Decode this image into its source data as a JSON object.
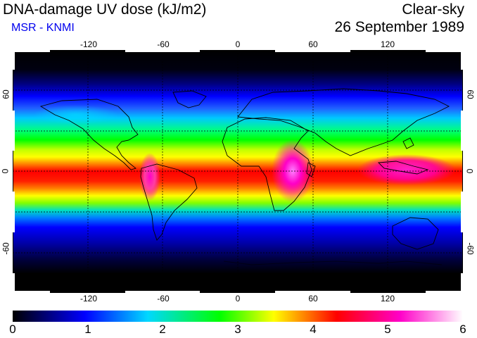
{
  "header": {
    "title": "DNA-damage UV dose (kJ/m2)",
    "subtitle": "MSR - KNMI",
    "condition": "Clear-sky",
    "date": "26 September 1989"
  },
  "map": {
    "lon_ticks": [
      "-120",
      "-60",
      "0",
      "60",
      "120"
    ],
    "lat_ticks": [
      "60",
      "0",
      "-60"
    ],
    "gridline_style": "dashed",
    "projection": "equirectangular, lon 180W-180E, lat 90S-90N",
    "coastline_color": "#000000"
  },
  "colorbar": {
    "labels": [
      "0",
      "1",
      "2",
      "3",
      "4",
      "5",
      "6"
    ],
    "min": 0,
    "max": 6,
    "colors": [
      "#000000",
      "#0000ff",
      "#00d8ff",
      "#00ff00",
      "#ffff00",
      "#ff0000",
      "#ff00c8",
      "#ffffff"
    ]
  }
}
